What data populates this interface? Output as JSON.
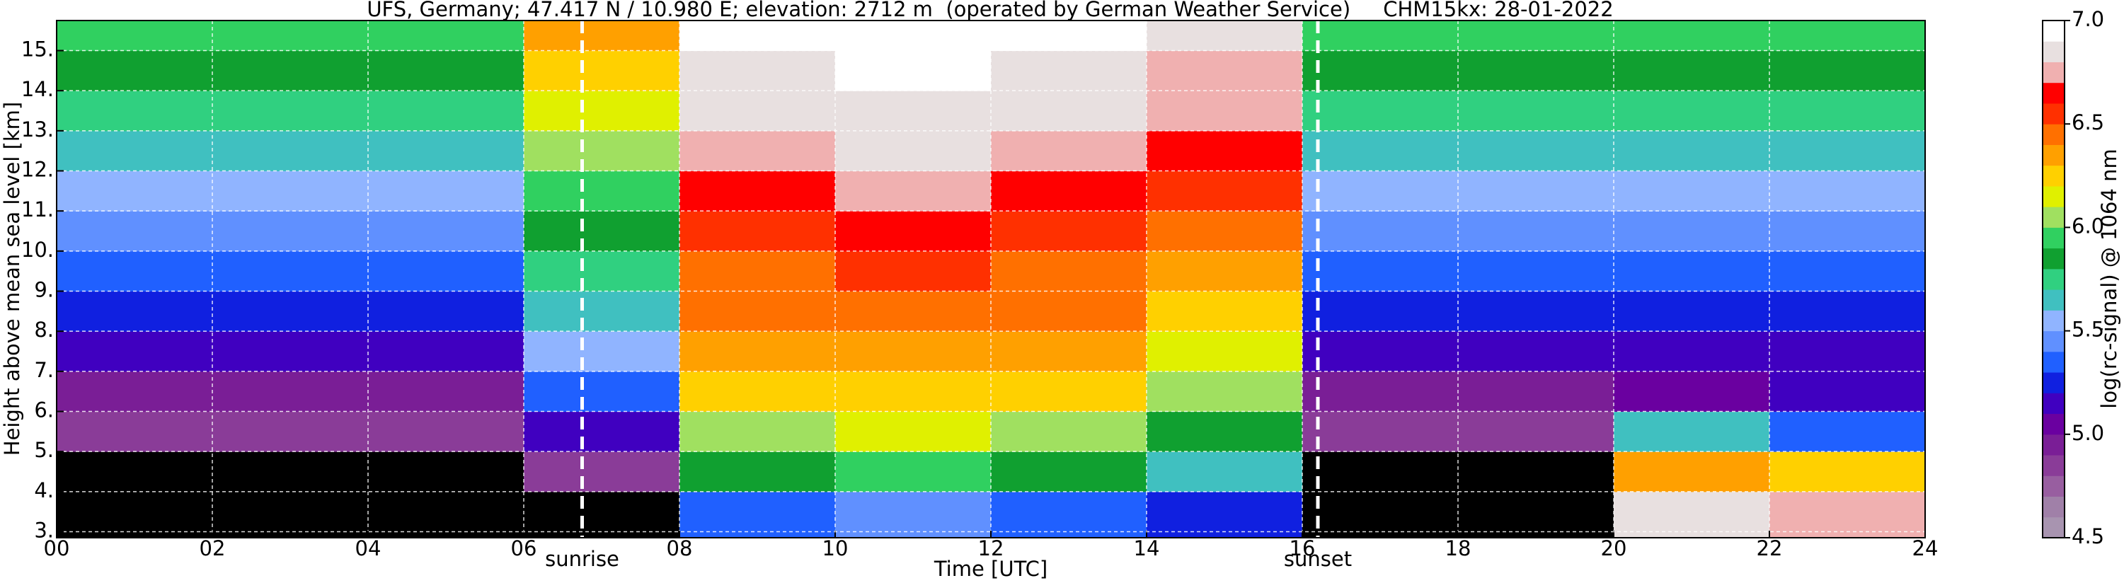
{
  "chart_data": {
    "type": "heatmap",
    "title": "UFS, Germany; 47.417 N / 10.980 E; elevation: 2712 m  (operated by German Weather Service)     CHM15kx: 28-01-2022",
    "xlabel": "Time [UTC]",
    "ylabel": "Height above mean sea level [km]",
    "colorbar_label": "log(rc-signal) @ 1064 nm",
    "xlim": [
      0,
      24
    ],
    "xticks": [
      {
        "value": 0,
        "label": "00"
      },
      {
        "value": 2,
        "label": "02"
      },
      {
        "value": 4,
        "label": "04"
      },
      {
        "value": 6,
        "label": "06"
      },
      {
        "value": 8,
        "label": "08"
      },
      {
        "value": 10,
        "label": "10"
      },
      {
        "value": 12,
        "label": "12"
      },
      {
        "value": 14,
        "label": "14"
      },
      {
        "value": 16,
        "label": "16"
      },
      {
        "value": 18,
        "label": "18"
      },
      {
        "value": 20,
        "label": "20"
      },
      {
        "value": 22,
        "label": "22"
      },
      {
        "value": 24,
        "label": "24"
      }
    ],
    "ylim": [
      2.85,
      15.75
    ],
    "yticks": [
      {
        "value": 3,
        "label": "3."
      },
      {
        "value": 4,
        "label": "4."
      },
      {
        "value": 5,
        "label": "5."
      },
      {
        "value": 6,
        "label": "6."
      },
      {
        "value": 7,
        "label": "7."
      },
      {
        "value": 8,
        "label": "8."
      },
      {
        "value": 9,
        "label": "9."
      },
      {
        "value": 10,
        "label": "10."
      },
      {
        "value": 11,
        "label": "11."
      },
      {
        "value": 12,
        "label": "12."
      },
      {
        "value": 13,
        "label": "13."
      },
      {
        "value": 14,
        "label": "14."
      },
      {
        "value": 15,
        "label": "15."
      }
    ],
    "grid": true,
    "clim": [
      4.5,
      7.0
    ],
    "cticks": [
      4.5,
      {
        "value": 5,
        "label": "5.0"
      },
      5.5,
      {
        "value": 6,
        "label": "6.0"
      },
      6.5,
      {
        "value": 7,
        "label": "7.0"
      }
    ],
    "below_color": "#000000",
    "colorscale": [
      "#a894b0",
      "#a080a8",
      "#985ea0",
      "#8a3c98",
      "#7a1e96",
      "#6a00a0",
      "#4000c0",
      "#1020e0",
      "#2060ff",
      "#6090ff",
      "#90b4ff",
      "#40c0c0",
      "#30d080",
      "#10a030",
      "#30d060",
      "#a0e060",
      "#e0f000",
      "#ffd000",
      "#ffa000",
      "#ff7000",
      "#ff3000",
      "#ff0000",
      "#f0b0b0",
      "#e8e0e0",
      "#ffffff"
    ],
    "xbins": [
      0,
      2,
      4,
      6,
      8,
      10,
      12,
      14,
      16,
      18,
      20,
      22,
      24
    ],
    "ybins": [
      2.85,
      4,
      5,
      6,
      7,
      8,
      9,
      10,
      11,
      12,
      13,
      14,
      15,
      15.75
    ],
    "z": [
      [
        4.3,
        4.3,
        4.3,
        4.4,
        5.3,
        5.4,
        5.3,
        5.2,
        4.3,
        4.3,
        6.8,
        6.7
      ],
      [
        4.4,
        4.4,
        4.4,
        4.8,
        5.8,
        5.9,
        5.8,
        5.6,
        4.4,
        4.4,
        6.3,
        6.2
      ],
      [
        4.8,
        4.8,
        4.8,
        5.1,
        6.0,
        6.1,
        6.0,
        5.8,
        4.8,
        4.8,
        5.6,
        5.3
      ],
      [
        4.9,
        4.9,
        4.9,
        5.3,
        6.2,
        6.2,
        6.2,
        6.0,
        4.9,
        4.9,
        5.0,
        5.1
      ],
      [
        5.1,
        5.1,
        5.1,
        5.5,
        6.3,
        6.3,
        6.3,
        6.1,
        5.1,
        5.1,
        5.1,
        5.1
      ],
      [
        5.2,
        5.2,
        5.2,
        5.6,
        6.4,
        6.4,
        6.4,
        6.2,
        5.2,
        5.2,
        5.2,
        5.2
      ],
      [
        5.3,
        5.3,
        5.3,
        5.7,
        6.4,
        6.5,
        6.4,
        6.3,
        5.3,
        5.3,
        5.3,
        5.3
      ],
      [
        5.4,
        5.4,
        5.4,
        5.8,
        6.5,
        6.6,
        6.5,
        6.4,
        5.4,
        5.4,
        5.4,
        5.4
      ],
      [
        5.5,
        5.5,
        5.5,
        5.9,
        6.6,
        6.7,
        6.6,
        6.5,
        5.5,
        5.5,
        5.5,
        5.5
      ],
      [
        5.6,
        5.6,
        5.6,
        6.0,
        6.7,
        6.8,
        6.7,
        6.6,
        5.6,
        5.6,
        5.6,
        5.6
      ],
      [
        5.7,
        5.7,
        5.7,
        6.1,
        6.8,
        6.8,
        6.8,
        6.7,
        5.7,
        5.7,
        5.7,
        5.7
      ],
      [
        5.8,
        5.8,
        5.8,
        6.2,
        6.8,
        6.9,
        6.8,
        6.7,
        5.8,
        5.8,
        5.8,
        5.8
      ],
      [
        5.9,
        5.9,
        5.9,
        6.3,
        6.9,
        6.9,
        6.9,
        6.8,
        5.9,
        5.9,
        5.9,
        5.9
      ]
    ],
    "annotations": [
      {
        "text": "sunrise",
        "x": 6.75
      },
      {
        "text": "sunset",
        "x": 16.2
      }
    ]
  }
}
